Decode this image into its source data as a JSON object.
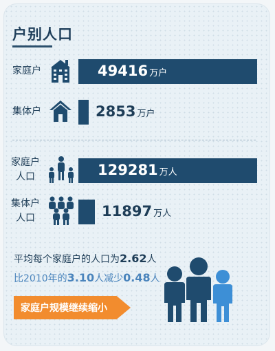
{
  "title": "户别人口",
  "chart_data": {
    "type": "bar",
    "groups": [
      {
        "categories": [
          "家庭户",
          "集体户"
        ],
        "values": [
          49416,
          2853
        ],
        "unit": "万户",
        "value_labels": [
          "49416",
          "2853"
        ]
      },
      {
        "categories": [
          "家庭户人口",
          "集体户人口"
        ],
        "values": [
          129281,
          11897
        ],
        "unit": "万人",
        "value_labels": [
          "129281",
          "11897"
        ]
      }
    ]
  },
  "labels": {
    "household_line1": "家庭户",
    "collective_line1": "集体户",
    "household_pop_line1": "家庭户",
    "household_pop_line2": "人口",
    "collective_pop_line1": "集体户",
    "collective_pop_line2": "人口"
  },
  "units": {
    "households": "万户",
    "people": "万人"
  },
  "note1": {
    "prefix": "平均每个家庭户的人口为",
    "value": "2.62",
    "suffix": "人"
  },
  "note2": {
    "prefix": "比2010年的",
    "value1": "3.10",
    "mid": "人减少",
    "value2": "0.48",
    "suffix": "人"
  },
  "tag_text": "家庭户规模继续缩小",
  "colors": {
    "bar": "#1f4b6e",
    "text": "#1e3d57",
    "accent_blue": "#4a84bc",
    "orange": "#f28c2e"
  }
}
